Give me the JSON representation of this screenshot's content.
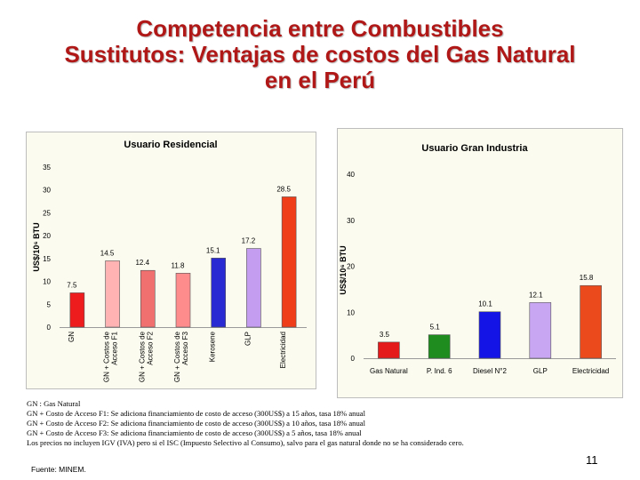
{
  "title": {
    "line1": "Competencia entre Combustibles",
    "line2": "Sustitutos: Ventajas de costos del Gas Natural",
    "line3": "en el Perú"
  },
  "chart_data": [
    {
      "type": "bar",
      "title": "Usuario  Residencial",
      "ylabel": "US$/10⁶ BTU",
      "ylim": [
        0,
        35
      ],
      "yticks": [
        0,
        5,
        10,
        15,
        20,
        25,
        30,
        35
      ],
      "categories": [
        "GN",
        "GN + Costos de Acceso F1",
        "GN + Costos de Acceso F2",
        "GN + Costos de Acceso F3",
        "Kerosene",
        "GLP",
        "Electricidad"
      ],
      "tick_lines": [
        [
          "GN"
        ],
        [
          "GN + Costos de",
          "Acceso F1"
        ],
        [
          "GN + Costos de",
          "Acceso F2"
        ],
        [
          "GN + Costos de",
          "Acceso F3"
        ],
        [
          "Kerosene"
        ],
        [
          "GLP"
        ],
        [
          "Electricidad"
        ]
      ],
      "values": [
        7.5,
        14.5,
        12.4,
        11.8,
        15.1,
        17.2,
        28.5
      ],
      "labels": [
        "7.5",
        "14.5",
        "12.4",
        "11.8",
        "15.1",
        "17.2",
        "28.5"
      ],
      "colors": [
        "#ee1c1c",
        "#ffb3b3",
        "#f07070",
        "#ff8c8c",
        "#2a2ad2",
        "#c49cf0",
        "#ef3d1a"
      ]
    },
    {
      "type": "bar",
      "title": "Usuario  Gran  Industria",
      "ylabel": "US$/10⁶ BTU",
      "ylim": [
        0,
        40
      ],
      "yticks": [
        0,
        10,
        20,
        30,
        40
      ],
      "categories": [
        "Gas Natural",
        "P. Ind. 6",
        "Diesel N°2",
        "GLP",
        "Electricidad"
      ],
      "values": [
        3.5,
        5.1,
        10.1,
        12.1,
        15.8
      ],
      "labels": [
        "3.5",
        "5.1",
        "10.1",
        "12.1",
        "15.8"
      ],
      "colors": [
        "#e41a1a",
        "#1e8c1e",
        "#1414e6",
        "#c9a6f2",
        "#ea4a1c"
      ]
    }
  ],
  "notes": [
    "GN : Gas Natural",
    "GN + Costo de Acceso F1: Se adiciona financiamiento de costo de acceso (300US$) a 15 años, tasa 18% anual",
    "GN + Costo de Acceso F2: Se adiciona financiamiento de costo de acceso (300US$) a 10 años, tasa 18% anual",
    "GN + Costo de Acceso F3: Se adiciona financiamiento de costo de acceso (300US$) a 5 años, tasa 18% anual",
    "Los precios no incluyen IGV  (IVA) pero si el ISC (Impuesto Selectivo al Consumo), salvo para el gas natural donde no se ha considerado cero."
  ],
  "source": "Fuente: MINEM.",
  "page_number": "11"
}
